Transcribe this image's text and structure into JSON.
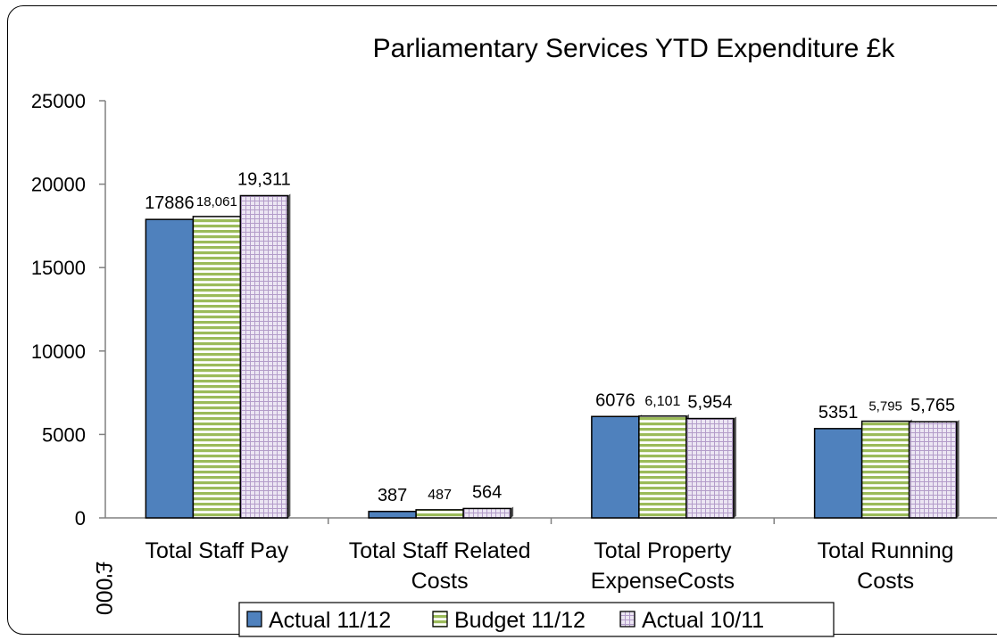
{
  "chart_data": {
    "type": "bar",
    "title": "Parliamentary Services YTD Expenditure   £k",
    "ylabel": "£'000",
    "xlabel": "",
    "ylim": [
      0,
      25000
    ],
    "yticks": [
      0,
      5000,
      10000,
      15000,
      20000,
      25000
    ],
    "grid": false,
    "legend_position": "bottom",
    "categories": [
      [
        "Total Staff Pay"
      ],
      [
        "Total Staff Related",
        "Costs"
      ],
      [
        "Total Property",
        "ExpenseCosts"
      ],
      [
        "Total Running",
        "Costs"
      ]
    ],
    "series": [
      {
        "name": "Actual 11/12",
        "values": [
          17886,
          387,
          6076,
          5351
        ],
        "labels": [
          "17886",
          "387",
          "6076",
          "5351"
        ],
        "color": "#4f81bd",
        "pattern": "solid"
      },
      {
        "name": "Budget 11/12",
        "values": [
          18061,
          487,
          6101,
          5795
        ],
        "labels": [
          "18,061",
          "487",
          "6,101",
          "5,795"
        ],
        "color": "#c3d69b",
        "pattern": "horizontal-lines"
      },
      {
        "name": "Actual 10/11",
        "values": [
          19311,
          564,
          5954,
          5765
        ],
        "labels": [
          "19,311",
          "564",
          "5,954",
          "5,765"
        ],
        "color": "#ccc0da",
        "pattern": "grid"
      }
    ]
  }
}
